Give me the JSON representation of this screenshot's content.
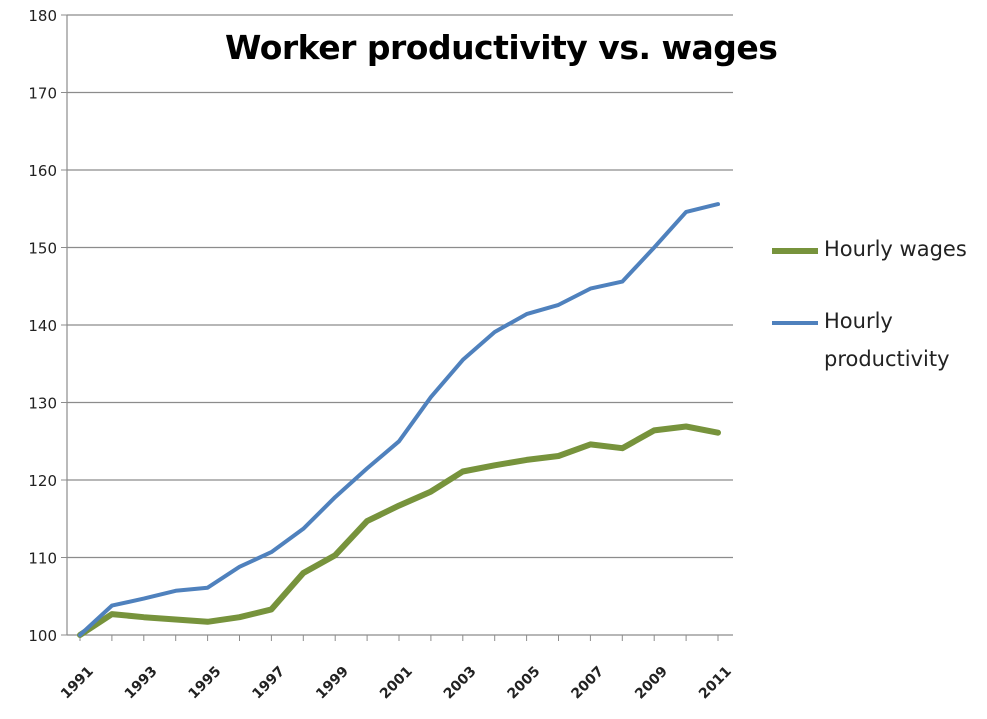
{
  "chart_data": {
    "type": "line",
    "title": "Worker productivity vs. wages",
    "xlabel": "",
    "ylabel": "",
    "ylim": [
      100,
      180
    ],
    "yticks": [
      100,
      110,
      120,
      130,
      140,
      150,
      160,
      170,
      180
    ],
    "x": [
      1991,
      1992,
      1993,
      1994,
      1995,
      1996,
      1997,
      1998,
      1999,
      2000,
      2001,
      2002,
      2003,
      2004,
      2005,
      2006,
      2007,
      2008,
      2009,
      2010,
      2011
    ],
    "xtick_labels": [
      "1991",
      "1993",
      "1995",
      "1997",
      "1999",
      "2001",
      "2003",
      "2005",
      "2007",
      "2009",
      "2011"
    ],
    "grid": true,
    "legend_position": "right",
    "series": [
      {
        "name": "Hourly wages",
        "color": "#77933C",
        "values": [
          100,
          102.7,
          102.3,
          102.0,
          101.7,
          102.3,
          103.3,
          108.0,
          110.3,
          114.7,
          116.7,
          118.5,
          121.1,
          121.9,
          122.6,
          123.1,
          124.6,
          124.1,
          126.4,
          126.9,
          126.1
        ]
      },
      {
        "name": "Hourly productivity",
        "color": "#4F81BD",
        "values": [
          100,
          103.8,
          104.7,
          105.7,
          106.1,
          108.8,
          110.7,
          113.7,
          117.8,
          121.5,
          125.0,
          130.7,
          135.5,
          139.1,
          141.4,
          142.6,
          144.7,
          145.6,
          150.0,
          154.6,
          155.6
        ]
      }
    ]
  }
}
